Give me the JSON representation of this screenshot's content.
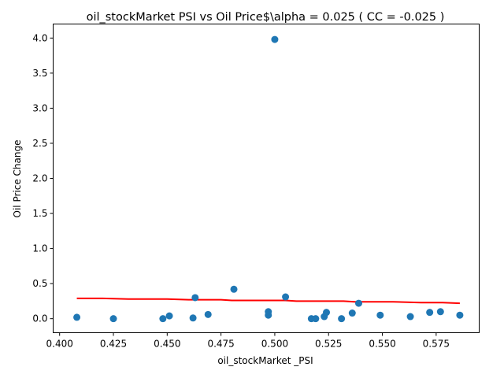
{
  "chart_data": {
    "type": "scatter",
    "title": "oil_stockMarket  PSI vs Oil Price$\\alpha = 0.025 ( CC = -0.025 )",
    "xlabel": "oil_stockMarket _PSI",
    "ylabel": "Oil Price Change",
    "xlim": [
      0.397,
      0.595
    ],
    "ylim": [
      -0.2,
      4.2
    ],
    "xticks": [
      0.4,
      0.425,
      0.45,
      0.475,
      0.5,
      0.525,
      0.55,
      0.575
    ],
    "xtick_labels": [
      "0.400",
      "0.425",
      "0.450",
      "0.475",
      "0.500",
      "0.525",
      "0.550",
      "0.575"
    ],
    "yticks": [
      0.0,
      0.5,
      1.0,
      1.5,
      2.0,
      2.5,
      3.0,
      3.5,
      4.0
    ],
    "ytick_labels": [
      "0.0",
      "0.5",
      "1.0",
      "1.5",
      "2.0",
      "2.5",
      "3.0",
      "3.5",
      "4.0"
    ],
    "grid": false,
    "point_color": "#1f77b4",
    "line_color": "#ff0000",
    "points": [
      {
        "x": 0.408,
        "y": 0.02
      },
      {
        "x": 0.425,
        "y": 0.0
      },
      {
        "x": 0.448,
        "y": 0.0
      },
      {
        "x": 0.451,
        "y": 0.04
      },
      {
        "x": 0.462,
        "y": 0.01
      },
      {
        "x": 0.463,
        "y": 0.3
      },
      {
        "x": 0.469,
        "y": 0.06
      },
      {
        "x": 0.481,
        "y": 0.42
      },
      {
        "x": 0.497,
        "y": 0.05
      },
      {
        "x": 0.497,
        "y": 0.1
      },
      {
        "x": 0.5,
        "y": 3.98
      },
      {
        "x": 0.505,
        "y": 0.31
      },
      {
        "x": 0.517,
        "y": 0.0
      },
      {
        "x": 0.519,
        "y": 0.0
      },
      {
        "x": 0.523,
        "y": 0.03
      },
      {
        "x": 0.524,
        "y": 0.09
      },
      {
        "x": 0.531,
        "y": 0.0
      },
      {
        "x": 0.536,
        "y": 0.08
      },
      {
        "x": 0.539,
        "y": 0.22
      },
      {
        "x": 0.549,
        "y": 0.05
      },
      {
        "x": 0.563,
        "y": 0.03
      },
      {
        "x": 0.572,
        "y": 0.09
      },
      {
        "x": 0.577,
        "y": 0.1
      },
      {
        "x": 0.586,
        "y": 0.05
      }
    ],
    "fit_line": [
      {
        "x": 0.408,
        "y": 0.29
      },
      {
        "x": 0.42,
        "y": 0.29
      },
      {
        "x": 0.432,
        "y": 0.28
      },
      {
        "x": 0.45,
        "y": 0.28
      },
      {
        "x": 0.46,
        "y": 0.27
      },
      {
        "x": 0.475,
        "y": 0.27
      },
      {
        "x": 0.48,
        "y": 0.26
      },
      {
        "x": 0.505,
        "y": 0.26
      },
      {
        "x": 0.51,
        "y": 0.25
      },
      {
        "x": 0.532,
        "y": 0.25
      },
      {
        "x": 0.537,
        "y": 0.24
      },
      {
        "x": 0.555,
        "y": 0.24
      },
      {
        "x": 0.568,
        "y": 0.23
      },
      {
        "x": 0.578,
        "y": 0.23
      },
      {
        "x": 0.586,
        "y": 0.22
      }
    ]
  }
}
